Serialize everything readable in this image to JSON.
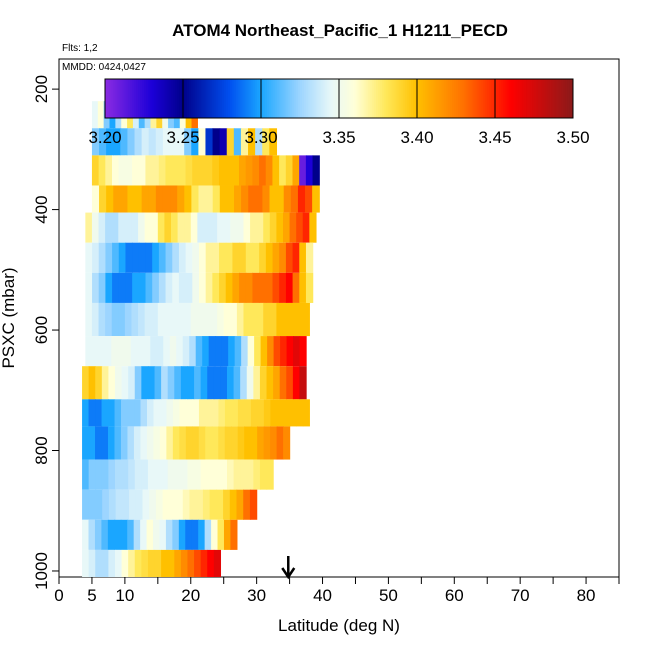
{
  "chart_data": {
    "type": "heatmap",
    "title": "ATOM4 Northeast_Pacific_1 H1211_PECD",
    "flights_note": "Flts: 1,2",
    "dates_note": "MMDD: 0424,0427",
    "xlabel": "Latitude (deg N)",
    "ylabel": "PSXC (mbar)",
    "xlim": [
      0,
      85
    ],
    "ylim": [
      1010,
      150
    ],
    "x_ticks": [
      0,
      5,
      10,
      20,
      30,
      40,
      50,
      60,
      70,
      80
    ],
    "x_minor_ticks": [
      15,
      25,
      35,
      45,
      55,
      65,
      75,
      85
    ],
    "y_ticks": [
      200,
      400,
      600,
      800,
      1000
    ],
    "colorbar": {
      "min": 3.2,
      "max": 3.5,
      "ticks": [
        "3.20",
        "3.25",
        "3.30",
        "3.35",
        "3.40",
        "3.45",
        "3.50"
      ],
      "stops": [
        {
          "v": 3.2,
          "c": "#8b2be2"
        },
        {
          "v": 3.23,
          "c": "#1c00d8"
        },
        {
          "v": 3.25,
          "c": "#00008b"
        },
        {
          "v": 3.28,
          "c": "#0050f0"
        },
        {
          "v": 3.3,
          "c": "#1aa6ff"
        },
        {
          "v": 3.325,
          "c": "#9dd5ff"
        },
        {
          "v": 3.345,
          "c": "#e8f8f8"
        },
        {
          "v": 3.36,
          "c": "#ffffd8"
        },
        {
          "v": 3.38,
          "c": "#ffe85a"
        },
        {
          "v": 3.4,
          "c": "#ffc000"
        },
        {
          "v": 3.43,
          "c": "#ff7000"
        },
        {
          "v": 3.46,
          "c": "#ff0000"
        },
        {
          "v": 3.5,
          "c": "#8b1a1a"
        }
      ]
    },
    "aircraft_marker_latitude": 34.8,
    "bands": [
      {
        "p_top": 220,
        "p_bot": 265,
        "lat_start": 5.0,
        "lat_end": 21.0,
        "v": [
          3.345,
          3.36,
          3.32,
          3.3,
          3.33,
          3.36,
          3.38,
          3.34,
          3.31,
          3.33,
          3.37,
          3.39,
          3.35,
          3.32,
          3.31,
          3.36,
          3.4,
          3.43
        ]
      },
      {
        "p_top": 265,
        "p_bot": 310,
        "lat_start": 5.0,
        "lat_end": 33.0,
        "v": [
          3.32,
          3.31,
          3.3,
          3.3,
          3.31,
          3.32,
          3.33,
          3.34,
          3.335,
          3.34,
          3.345,
          3.345,
          3.345,
          3.32,
          3.3,
          3.36,
          3.27,
          3.25,
          3.24,
          3.39,
          3.31,
          3.37,
          3.4,
          3.33,
          3.38,
          3.4
        ]
      },
      {
        "p_top": 310,
        "p_bot": 360,
        "lat_start": 5.0,
        "lat_end": 39.5,
        "v": [
          3.39,
          3.38,
          3.37,
          3.36,
          3.355,
          3.355,
          3.36,
          3.36,
          3.37,
          3.37,
          3.375,
          3.38,
          3.38,
          3.38,
          3.385,
          3.39,
          3.39,
          3.39,
          3.395,
          3.4,
          3.4,
          3.4,
          3.41,
          3.415,
          3.42,
          3.43,
          3.42,
          3.4,
          3.38,
          3.39,
          3.41,
          3.21,
          3.23,
          3.25
        ]
      },
      {
        "p_top": 360,
        "p_bot": 405,
        "lat_start": 5.0,
        "lat_end": 39.5,
        "v": [
          3.36,
          3.39,
          3.4,
          3.41,
          3.41,
          3.4,
          3.4,
          3.41,
          3.41,
          3.42,
          3.42,
          3.42,
          3.41,
          3.4,
          3.38,
          3.37,
          3.37,
          3.38,
          3.4,
          3.4,
          3.41,
          3.42,
          3.43,
          3.43,
          3.42,
          3.4,
          3.4,
          3.42,
          3.43,
          3.45,
          3.44,
          3.4
        ]
      },
      {
        "p_top": 405,
        "p_bot": 455,
        "lat_start": 4.0,
        "lat_end": 39.0,
        "v": [
          3.37,
          3.35,
          3.34,
          3.33,
          3.33,
          3.34,
          3.34,
          3.34,
          3.35,
          3.36,
          3.36,
          3.38,
          3.39,
          3.38,
          3.37,
          3.37,
          3.36,
          3.34,
          3.34,
          3.34,
          3.345,
          3.345,
          3.35,
          3.35,
          3.36,
          3.37,
          3.37,
          3.38,
          3.39,
          3.4,
          3.41,
          3.43,
          3.44,
          3.45,
          3.4
        ]
      },
      {
        "p_top": 455,
        "p_bot": 505,
        "lat_start": 4.0,
        "lat_end": 38.5,
        "v": [
          3.345,
          3.34,
          3.33,
          3.32,
          3.31,
          3.3,
          3.29,
          3.29,
          3.29,
          3.29,
          3.3,
          3.31,
          3.32,
          3.33,
          3.34,
          3.345,
          3.35,
          3.36,
          3.37,
          3.37,
          3.38,
          3.38,
          3.39,
          3.39,
          3.38,
          3.38,
          3.39,
          3.4,
          3.41,
          3.42,
          3.44,
          3.45,
          3.4,
          3.37
        ]
      },
      {
        "p_top": 505,
        "p_bot": 555,
        "lat_start": 4.0,
        "lat_end": 38.5,
        "v": [
          3.345,
          3.33,
          3.32,
          3.3,
          3.29,
          3.29,
          3.29,
          3.3,
          3.3,
          3.31,
          3.32,
          3.33,
          3.34,
          3.345,
          3.34,
          3.34,
          3.35,
          3.36,
          3.37,
          3.38,
          3.39,
          3.4,
          3.41,
          3.42,
          3.42,
          3.43,
          3.43,
          3.43,
          3.44,
          3.45,
          3.46,
          3.43,
          3.4,
          3.38
        ]
      },
      {
        "p_top": 555,
        "p_bot": 610,
        "lat_start": 4.0,
        "lat_end": 38.0,
        "v": [
          3.345,
          3.34,
          3.33,
          3.325,
          3.32,
          3.32,
          3.325,
          3.33,
          3.335,
          3.34,
          3.34,
          3.345,
          3.345,
          3.345,
          3.345,
          3.345,
          3.35,
          3.35,
          3.35,
          3.35,
          3.355,
          3.36,
          3.36,
          3.37,
          3.38,
          3.38,
          3.38,
          3.39,
          3.39,
          3.4,
          3.4,
          3.4,
          3.4,
          3.4
        ]
      },
      {
        "p_top": 610,
        "p_bot": 660,
        "lat_start": 4.0,
        "lat_end": 37.5,
        "v": [
          3.345,
          3.345,
          3.345,
          3.345,
          3.35,
          3.35,
          3.35,
          3.345,
          3.345,
          3.345,
          3.34,
          3.34,
          3.345,
          3.35,
          3.345,
          3.34,
          3.33,
          3.31,
          3.3,
          3.29,
          3.29,
          3.29,
          3.3,
          3.31,
          3.33,
          3.36,
          3.38,
          3.4,
          3.42,
          3.44,
          3.45,
          3.46,
          3.47,
          3.46
        ]
      },
      {
        "p_top": 660,
        "p_bot": 715,
        "lat_start": 3.5,
        "lat_end": 37.5,
        "v": [
          3.39,
          3.4,
          3.39,
          3.37,
          3.36,
          3.35,
          3.345,
          3.34,
          3.32,
          3.3,
          3.3,
          3.31,
          3.33,
          3.32,
          3.31,
          3.3,
          3.3,
          3.31,
          3.3,
          3.29,
          3.29,
          3.29,
          3.3,
          3.31,
          3.33,
          3.35,
          3.37,
          3.39,
          3.4,
          3.41,
          3.43,
          3.44,
          3.46,
          3.48
        ]
      },
      {
        "p_top": 715,
        "p_bot": 760,
        "lat_start": 3.5,
        "lat_end": 38.0,
        "v": [
          3.3,
          3.29,
          3.29,
          3.3,
          3.3,
          3.31,
          3.32,
          3.32,
          3.32,
          3.33,
          3.34,
          3.345,
          3.345,
          3.35,
          3.355,
          3.36,
          3.36,
          3.36,
          3.37,
          3.37,
          3.37,
          3.375,
          3.38,
          3.38,
          3.385,
          3.385,
          3.39,
          3.39,
          3.395,
          3.4,
          3.4,
          3.4,
          3.4,
          3.4,
          3.4
        ]
      },
      {
        "p_top": 760,
        "p_bot": 815,
        "lat_start": 3.5,
        "lat_end": 35.0,
        "v": [
          3.3,
          3.3,
          3.29,
          3.29,
          3.3,
          3.31,
          3.32,
          3.33,
          3.34,
          3.345,
          3.35,
          3.355,
          3.36,
          3.37,
          3.38,
          3.385,
          3.39,
          3.39,
          3.385,
          3.38,
          3.38,
          3.385,
          3.39,
          3.39,
          3.395,
          3.4,
          3.4,
          3.41,
          3.415,
          3.42,
          3.43,
          3.42
        ]
      },
      {
        "p_top": 815,
        "p_bot": 865,
        "lat_start": 3.5,
        "lat_end": 32.5,
        "v": [
          3.31,
          3.32,
          3.32,
          3.32,
          3.325,
          3.33,
          3.33,
          3.335,
          3.34,
          3.34,
          3.345,
          3.345,
          3.345,
          3.35,
          3.35,
          3.35,
          3.355,
          3.355,
          3.36,
          3.36,
          3.36,
          3.36,
          3.365,
          3.37,
          3.37,
          3.37,
          3.375,
          3.38,
          3.38
        ]
      },
      {
        "p_top": 865,
        "p_bot": 915,
        "lat_start": 3.5,
        "lat_end": 30.0,
        "v": [
          3.32,
          3.32,
          3.32,
          3.325,
          3.33,
          3.335,
          3.335,
          3.34,
          3.34,
          3.345,
          3.35,
          3.355,
          3.36,
          3.36,
          3.36,
          3.365,
          3.37,
          3.37,
          3.375,
          3.38,
          3.38,
          3.39,
          3.4,
          3.41,
          3.43,
          3.44
        ]
      },
      {
        "p_top": 915,
        "p_bot": 965,
        "lat_start": 3.5,
        "lat_end": 27.0,
        "v": [
          3.345,
          3.33,
          3.32,
          3.31,
          3.3,
          3.3,
          3.3,
          3.31,
          3.33,
          3.345,
          3.36,
          3.35,
          3.345,
          3.33,
          3.32,
          3.3,
          3.29,
          3.29,
          3.3,
          3.33,
          3.36,
          3.38,
          3.41,
          3.43
        ]
      },
      {
        "p_top": 965,
        "p_bot": 1010,
        "lat_start": 3.5,
        "lat_end": 24.5,
        "v": [
          3.345,
          3.34,
          3.33,
          3.33,
          3.34,
          3.345,
          3.36,
          3.37,
          3.38,
          3.385,
          3.39,
          3.39,
          3.4,
          3.4,
          3.41,
          3.42,
          3.43,
          3.44,
          3.45,
          3.46,
          3.47
        ]
      }
    ]
  }
}
